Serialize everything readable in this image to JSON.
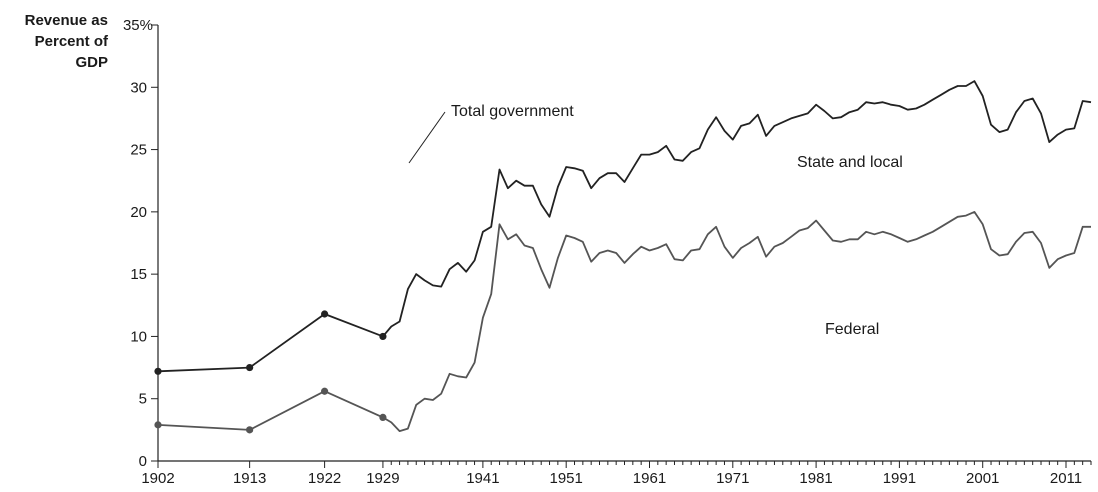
{
  "chart_data": {
    "type": "line",
    "ylabel_lines": [
      "Revenue as",
      "Percent of",
      "GDP"
    ],
    "ylim": [
      0,
      35
    ],
    "yticks": [
      0,
      5,
      10,
      15,
      20,
      25,
      30
    ],
    "ytick_top_label": "35%",
    "xlim": [
      1902,
      2014
    ],
    "xticks": [
      1902,
      1913,
      1922,
      1929,
      1941,
      1951,
      1961,
      1971,
      1981,
      1991,
      2001,
      2011
    ],
    "grid": false,
    "legend": "none",
    "annotations": [
      {
        "text": "Total government",
        "target_x": 1943,
        "target_y": 23.8,
        "has_pointer": true
      },
      {
        "text": "State and local",
        "has_pointer": false
      },
      {
        "text": "Federal",
        "has_pointer": false
      }
    ],
    "series": [
      {
        "id": "total",
        "color": "#222222",
        "markers_at": [
          1902,
          1913,
          1922,
          1929
        ],
        "x": [
          1902,
          1913,
          1922,
          1929,
          1930,
          1931,
          1932,
          1933,
          1934,
          1935,
          1936,
          1937,
          1938,
          1939,
          1940,
          1941,
          1942,
          1943,
          1944,
          1945,
          1946,
          1947,
          1948,
          1949,
          1950,
          1951,
          1952,
          1953,
          1954,
          1955,
          1956,
          1957,
          1958,
          1959,
          1960,
          1961,
          1962,
          1963,
          1964,
          1965,
          1966,
          1967,
          1968,
          1969,
          1970,
          1971,
          1972,
          1973,
          1974,
          1975,
          1976,
          1977,
          1978,
          1979,
          1980,
          1981,
          1982,
          1983,
          1984,
          1985,
          1986,
          1987,
          1988,
          1989,
          1990,
          1991,
          1992,
          1993,
          1994,
          1995,
          1996,
          1997,
          1998,
          1999,
          2000,
          2001,
          2002,
          2003,
          2004,
          2005,
          2006,
          2007,
          2008,
          2009,
          2010,
          2011,
          2012,
          2013,
          2014
        ],
        "values": [
          7.2,
          7.5,
          11.8,
          10.0,
          10.8,
          11.2,
          13.8,
          15.0,
          14.5,
          14.1,
          14.0,
          15.4,
          15.9,
          15.2,
          16.1,
          18.4,
          18.8,
          23.4,
          21.9,
          22.5,
          22.1,
          22.1,
          20.6,
          19.6,
          22.0,
          23.6,
          23.5,
          23.3,
          21.9,
          22.7,
          23.1,
          23.1,
          22.4,
          23.5,
          24.6,
          24.6,
          24.8,
          25.3,
          24.2,
          24.1,
          24.8,
          25.1,
          26.6,
          27.6,
          26.5,
          25.8,
          26.9,
          27.1,
          27.8,
          26.1,
          26.9,
          27.2,
          27.5,
          27.7,
          27.9,
          28.6,
          28.1,
          27.5,
          27.6,
          28.0,
          28.2,
          28.8,
          28.7,
          28.8,
          28.6,
          28.5,
          28.2,
          28.3,
          28.6,
          29.0,
          29.4,
          29.8,
          30.1,
          30.1,
          30.5,
          29.3,
          27.0,
          26.4,
          26.6,
          28.0,
          28.9,
          29.1,
          27.9,
          25.6,
          26.2,
          26.6,
          26.7,
          28.9,
          28.8
        ]
      },
      {
        "id": "federal",
        "color": "#555555",
        "markers_at": [
          1902,
          1913,
          1922,
          1929
        ],
        "x": [
          1902,
          1913,
          1922,
          1929,
          1930,
          1931,
          1932,
          1933,
          1934,
          1935,
          1936,
          1937,
          1938,
          1939,
          1940,
          1941,
          1942,
          1943,
          1944,
          1945,
          1946,
          1947,
          1948,
          1949,
          1950,
          1951,
          1952,
          1953,
          1954,
          1955,
          1956,
          1957,
          1958,
          1959,
          1960,
          1961,
          1962,
          1963,
          1964,
          1965,
          1966,
          1967,
          1968,
          1969,
          1970,
          1971,
          1972,
          1973,
          1974,
          1975,
          1976,
          1977,
          1978,
          1979,
          1980,
          1981,
          1982,
          1983,
          1984,
          1985,
          1986,
          1987,
          1988,
          1989,
          1990,
          1991,
          1992,
          1993,
          1994,
          1995,
          1996,
          1997,
          1998,
          1999,
          2000,
          2001,
          2002,
          2003,
          2004,
          2005,
          2006,
          2007,
          2008,
          2009,
          2010,
          2011,
          2012,
          2013,
          2014
        ],
        "values": [
          2.9,
          2.5,
          5.6,
          3.5,
          3.1,
          2.4,
          2.6,
          4.5,
          5.0,
          4.9,
          5.4,
          7.0,
          6.8,
          6.7,
          7.9,
          11.5,
          13.4,
          19.0,
          17.8,
          18.2,
          17.3,
          17.1,
          15.4,
          13.9,
          16.3,
          18.1,
          17.9,
          17.6,
          16.0,
          16.7,
          16.9,
          16.7,
          15.9,
          16.6,
          17.2,
          16.9,
          17.1,
          17.4,
          16.2,
          16.1,
          16.9,
          17.0,
          18.2,
          18.8,
          17.2,
          16.3,
          17.1,
          17.5,
          18.0,
          16.4,
          17.2,
          17.5,
          18.0,
          18.5,
          18.7,
          19.3,
          18.5,
          17.7,
          17.6,
          17.8,
          17.8,
          18.4,
          18.2,
          18.4,
          18.2,
          17.9,
          17.6,
          17.8,
          18.1,
          18.4,
          18.8,
          19.2,
          19.6,
          19.7,
          20.0,
          19.0,
          17.0,
          16.5,
          16.6,
          17.6,
          18.3,
          18.4,
          17.5,
          15.5,
          16.2,
          16.5,
          16.7,
          18.8,
          18.8
        ]
      }
    ]
  }
}
